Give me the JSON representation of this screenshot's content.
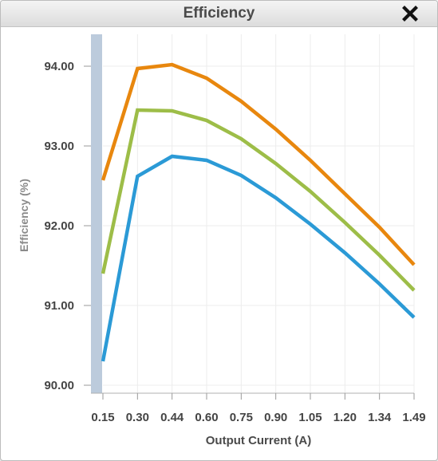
{
  "dialog": {
    "title": "Efficiency"
  },
  "chart_data": {
    "type": "line",
    "title": "Efficiency",
    "xlabel": "Output Current (A)",
    "ylabel": "Efficiency (%)",
    "x": [
      0.15,
      0.3,
      0.44,
      0.6,
      0.75,
      0.9,
      1.05,
      1.2,
      1.34,
      1.49
    ],
    "x_tick_labels": [
      "0.15",
      "0.30",
      "0.44",
      "0.60",
      "0.75",
      "0.90",
      "1.05",
      "1.20",
      "1.34",
      "1.49"
    ],
    "y_tick_values": [
      90,
      91,
      92,
      93,
      94
    ],
    "y_tick_labels": [
      "90.00",
      "91.00",
      "92.00",
      "93.00",
      "94.00"
    ],
    "ylim": [
      89.9,
      94.4
    ],
    "grid": true,
    "series": [
      {
        "color": "#e8870e",
        "values": [
          92.57,
          93.97,
          94.02,
          93.85,
          93.56,
          93.21,
          92.82,
          92.4,
          91.98,
          91.51
        ]
      },
      {
        "color": "#9dbd48",
        "values": [
          91.4,
          93.45,
          93.44,
          93.32,
          93.09,
          92.78,
          92.43,
          92.04,
          91.63,
          91.19
        ]
      },
      {
        "color": "#2b9ad6",
        "values": [
          90.3,
          92.62,
          92.87,
          92.82,
          92.63,
          92.35,
          92.02,
          91.66,
          91.27,
          90.85
        ]
      }
    ]
  }
}
